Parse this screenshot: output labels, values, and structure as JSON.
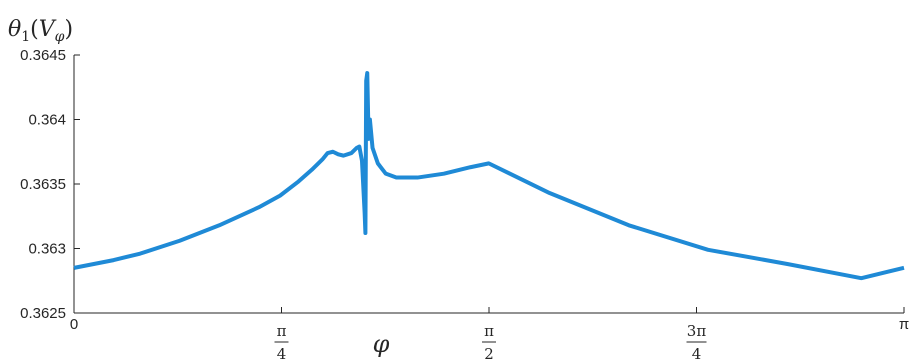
{
  "chart_data": {
    "type": "line",
    "title": "",
    "ylabel": {
      "main": "θ",
      "sub1": "1",
      "open": "(",
      "var": "V",
      "sub2": "φ",
      "close": ")"
    },
    "xlabel": "φ",
    "xlim": [
      0,
      3.14159
    ],
    "ylim": [
      0.3625,
      0.3645
    ],
    "grid": false,
    "y_ticks": [
      {
        "value": 0.3625,
        "label": "0.3625"
      },
      {
        "value": 0.363,
        "label": "0.363"
      },
      {
        "value": 0.3635,
        "label": "0.3635"
      },
      {
        "value": 0.364,
        "label": "0.364"
      },
      {
        "value": 0.3645,
        "label": "0.3645"
      }
    ],
    "x_ticks": [
      {
        "value": 0,
        "kind": "plain",
        "label": "0"
      },
      {
        "value": 0.7854,
        "kind": "frac",
        "num": "π",
        "den": "4"
      },
      {
        "value": 1.5708,
        "kind": "frac",
        "num": "π",
        "den": "2"
      },
      {
        "value": 2.3562,
        "kind": "frac",
        "num": "3π",
        "den": "4"
      },
      {
        "value": 3.14159,
        "kind": "plain",
        "label": "π"
      }
    ],
    "series": [
      {
        "color": "#1f8ad6",
        "x": [
          0,
          0.15,
          0.25,
          0.4,
          0.55,
          0.7,
          0.78,
          0.85,
          0.9,
          0.94,
          0.96,
          0.98,
          1.0,
          1.02,
          1.05,
          1.07,
          1.08,
          1.09,
          1.1,
          1.103,
          1.106,
          1.11,
          1.115,
          1.12,
          1.13,
          1.15,
          1.18,
          1.22,
          1.3,
          1.4,
          1.5,
          1.57,
          1.8,
          2.1,
          2.4,
          2.7,
          2.98,
          3.14159
        ],
        "y": [
          0.36285,
          0.36291,
          0.36296,
          0.36306,
          0.36318,
          0.36332,
          0.36341,
          0.36352,
          0.36361,
          0.36369,
          0.36374,
          0.36375,
          0.36373,
          0.36372,
          0.36374,
          0.36378,
          0.36379,
          0.36368,
          0.36328,
          0.36312,
          0.3643,
          0.36436,
          0.36385,
          0.364,
          0.36378,
          0.36366,
          0.36358,
          0.36355,
          0.36355,
          0.36358,
          0.36363,
          0.36366,
          0.36343,
          0.36318,
          0.36299,
          0.36288,
          0.36277,
          0.36285
        ]
      }
    ]
  }
}
